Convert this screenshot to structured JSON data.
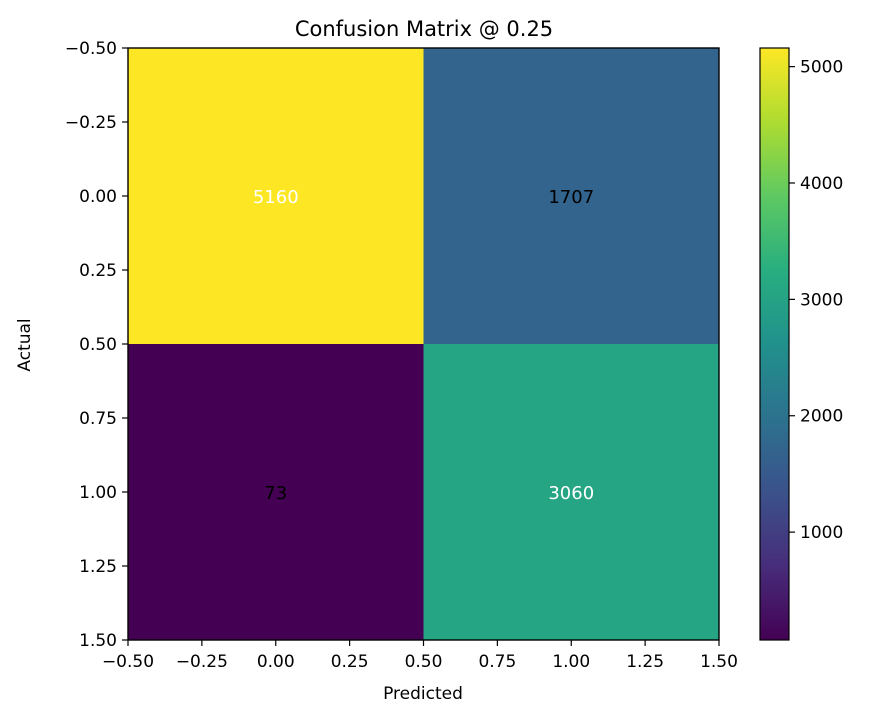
{
  "chart_data": {
    "type": "heatmap",
    "title": "Confusion Matrix @ 0.25",
    "xlabel": "Predicted",
    "ylabel": "Actual",
    "x_ticks": [
      "−0.50",
      "−0.25",
      "0.00",
      "0.25",
      "0.50",
      "0.75",
      "1.00",
      "1.25",
      "1.50"
    ],
    "y_ticks": [
      "−0.50",
      "−0.25",
      "0.00",
      "0.25",
      "0.50",
      "0.75",
      "1.00",
      "1.25",
      "1.50"
    ],
    "xlim": [
      -0.5,
      1.5
    ],
    "ylim": [
      -0.5,
      1.5
    ],
    "y_inverted": true,
    "matrix": [
      [
        5160,
        1707
      ],
      [
        73,
        3060
      ]
    ],
    "cell_labels": [
      [
        "5160",
        "1707"
      ],
      [
        "73",
        "3060"
      ]
    ],
    "cell_text_colors": [
      [
        "#ffffff",
        "#000000"
      ],
      [
        "#000000",
        "#ffffff"
      ]
    ],
    "colormap": "viridis",
    "colorbar": {
      "min": 73,
      "max": 5160,
      "ticks": [
        1000,
        2000,
        3000,
        4000,
        5000
      ],
      "tick_labels": [
        "1000",
        "2000",
        "3000",
        "4000",
        "5000"
      ]
    }
  }
}
